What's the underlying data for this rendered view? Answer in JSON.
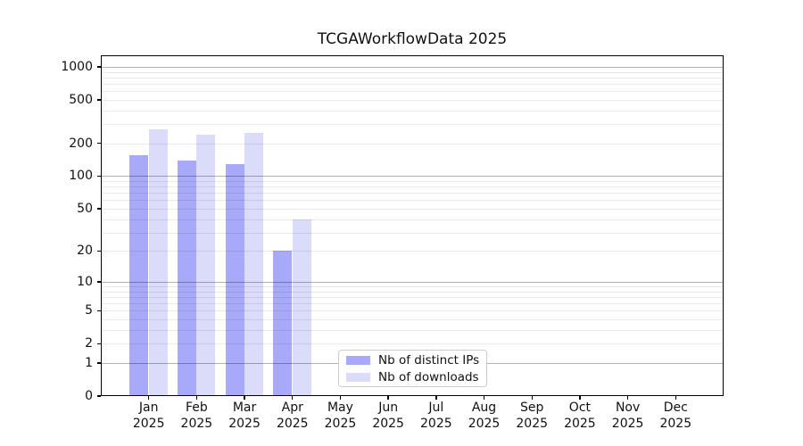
{
  "chart_data": {
    "type": "bar",
    "title": "TCGAWorkflowData 2025",
    "categories": [
      "Jan",
      "Feb",
      "Mar",
      "Apr",
      "May",
      "Jun",
      "Jul",
      "Aug",
      "Sep",
      "Oct",
      "Nov",
      "Dec"
    ],
    "category_year": "2025",
    "series": [
      {
        "name": "Nb of distinct IPs",
        "color": "#a9a9fa",
        "values": [
          155,
          138,
          128,
          20,
          null,
          null,
          null,
          null,
          null,
          null,
          null,
          null
        ]
      },
      {
        "name": "Nb of downloads",
        "color": "#dbdbfa",
        "values": [
          270,
          240,
          248,
          40,
          null,
          null,
          null,
          null,
          null,
          null,
          null,
          null
        ]
      }
    ],
    "yscale": "log10(1+x)",
    "ylim": [
      0,
      1275
    ],
    "ytick_labels": [
      "0",
      "1",
      "2",
      "5",
      "10",
      "20",
      "50",
      "100",
      "200",
      "500",
      "1000"
    ],
    "yticks": [
      0,
      1,
      2,
      5,
      10,
      20,
      50,
      100,
      200,
      500,
      1000
    ],
    "major_gridlines": [
      1,
      10,
      100,
      1000
    ],
    "minor_gridlines": [
      2,
      3,
      4,
      5,
      6,
      7,
      8,
      9,
      20,
      30,
      40,
      50,
      60,
      70,
      80,
      90,
      200,
      300,
      400,
      500,
      600,
      700,
      800,
      900
    ],
    "xlabel": "",
    "ylabel": "",
    "grid": true,
    "legend_position": "lower center"
  }
}
